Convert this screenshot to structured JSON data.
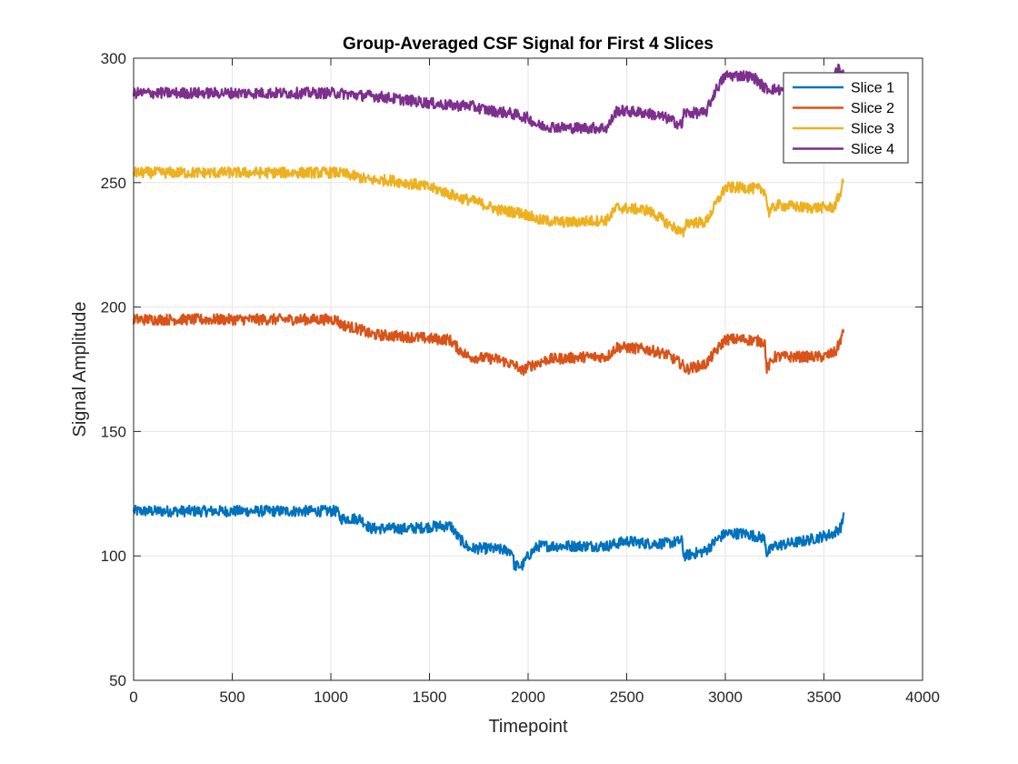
{
  "chart_data": {
    "type": "line",
    "title": "Group-Averaged CSF Signal for First 4 Slices",
    "xlabel": "Timepoint",
    "ylabel": "Signal Amplitude",
    "xlim": [
      0,
      4000
    ],
    "ylim": [
      50,
      300
    ],
    "xticks": [
      0,
      500,
      1000,
      1500,
      2000,
      2500,
      3000,
      3500,
      4000
    ],
    "yticks": [
      50,
      100,
      150,
      200,
      250,
      300
    ],
    "grid": true,
    "legend_position": "top-right",
    "noise_amplitude": 2.2,
    "series": [
      {
        "name": "Slice 1",
        "color": "#0072BD",
        "x": [
          0,
          200,
          400,
          600,
          800,
          1000,
          1030,
          1050,
          1150,
          1200,
          1400,
          1550,
          1610,
          1640,
          1700,
          1800,
          1920,
          1930,
          1970,
          2000,
          2050,
          2200,
          2400,
          2500,
          2600,
          2700,
          2780,
          2790,
          2900,
          2950,
          3000,
          3100,
          3200,
          3210,
          3250,
          3400,
          3500,
          3550,
          3590,
          3600
        ],
        "y": [
          118,
          118,
          118,
          118,
          118,
          118,
          118,
          115,
          115,
          111,
          111,
          112,
          112,
          108,
          103,
          103,
          102,
          96,
          96,
          100,
          104,
          104,
          104,
          106,
          105,
          105,
          106,
          100,
          102,
          106,
          109,
          109,
          107,
          101,
          104,
          106,
          108,
          109,
          112,
          117
        ]
      },
      {
        "name": "Slice 2",
        "color": "#D95319",
        "x": [
          0,
          200,
          400,
          600,
          800,
          1000,
          1030,
          1050,
          1150,
          1200,
          1400,
          1550,
          1600,
          1650,
          1700,
          1850,
          1950,
          1960,
          2000,
          2100,
          2300,
          2400,
          2450,
          2600,
          2700,
          2780,
          2800,
          2900,
          2950,
          3000,
          3100,
          3200,
          3210,
          3250,
          3400,
          3500,
          3560,
          3600
        ],
        "y": [
          195,
          195,
          195,
          195,
          195,
          195,
          195,
          193,
          191,
          189,
          188,
          187,
          187,
          183,
          180,
          179,
          176,
          174,
          176,
          179,
          180,
          180,
          184,
          183,
          181,
          177,
          175,
          177,
          182,
          187,
          187,
          186,
          175,
          180,
          180,
          180,
          182,
          190
        ]
      },
      {
        "name": "Slice 3",
        "color": "#EDB120",
        "x": [
          0,
          200,
          400,
          600,
          800,
          1000,
          1030,
          1100,
          1200,
          1300,
          1450,
          1550,
          1650,
          1750,
          1850,
          1950,
          2000,
          2050,
          2200,
          2400,
          2450,
          2600,
          2650,
          2700,
          2760,
          2790,
          2800,
          2900,
          2950,
          3000,
          3100,
          3200,
          3220,
          3260,
          3400,
          3550,
          3580,
          3600
        ],
        "y": [
          254,
          254,
          254,
          254,
          254,
          254,
          254,
          253,
          251,
          251,
          249,
          247,
          244,
          242,
          239,
          238,
          237,
          235,
          234,
          235,
          240,
          239,
          237,
          234,
          231,
          229,
          234,
          234,
          241,
          248,
          248,
          247,
          238,
          241,
          240,
          240,
          245,
          251
        ]
      },
      {
        "name": "Slice 4",
        "color": "#7E2F8E",
        "x": [
          0,
          200,
          400,
          600,
          800,
          1000,
          1030,
          1150,
          1200,
          1300,
          1400,
          1500,
          1600,
          1700,
          1800,
          1900,
          2000,
          2050,
          2200,
          2400,
          2450,
          2600,
          2700,
          2780,
          2790,
          2900,
          2950,
          3000,
          3100,
          3150,
          3200,
          3300,
          3400,
          3500,
          3540,
          3560,
          3600
        ],
        "y": [
          286,
          286,
          286,
          286,
          286,
          286,
          286,
          285,
          285,
          284,
          283,
          282,
          281,
          281,
          279,
          278,
          276,
          273,
          272,
          272,
          279,
          278,
          276,
          273,
          278,
          278,
          287,
          293,
          293,
          292,
          288,
          287,
          288,
          288,
          286,
          296,
          294
        ]
      }
    ]
  }
}
